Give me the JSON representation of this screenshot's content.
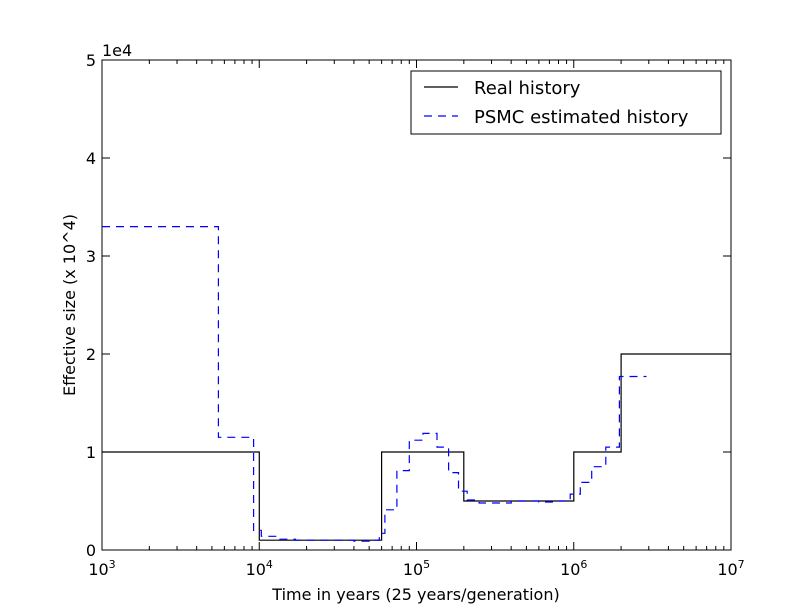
{
  "chart_data": {
    "type": "line",
    "title": "",
    "xlabel": "Time in years (25 years/generation)",
    "ylabel": "Effective size (x 10^4)",
    "x_scale": "log",
    "xlim": [
      1000,
      10000000
    ],
    "ylim": [
      0,
      50000
    ],
    "y_offset_label": "1e4",
    "x_ticks": [
      {
        "base": "10",
        "exp": "3",
        "value": 1000
      },
      {
        "base": "10",
        "exp": "4",
        "value": 10000
      },
      {
        "base": "10",
        "exp": "5",
        "value": 100000
      },
      {
        "base": "10",
        "exp": "6",
        "value": 1000000
      },
      {
        "base": "10",
        "exp": "7",
        "value": 10000000
      }
    ],
    "y_ticks": [
      {
        "label": "0",
        "value": 0
      },
      {
        "label": "1",
        "value": 10000
      },
      {
        "label": "2",
        "value": 20000
      },
      {
        "label": "3",
        "value": 30000
      },
      {
        "label": "4",
        "value": 40000
      },
      {
        "label": "5",
        "value": 50000
      }
    ],
    "grid": false,
    "legend_position": "top-right",
    "series": [
      {
        "name": "Real history",
        "color": "#000000",
        "dash": "solid",
        "step": true,
        "x": [
          1000,
          10000,
          60000,
          200000,
          1000000,
          2000000,
          10000000
        ],
        "y": [
          10000,
          1000,
          10000,
          5000,
          10000,
          20000,
          20000
        ]
      },
      {
        "name": "PSMC estimated history",
        "color": "#0000ff",
        "dash": "dashed",
        "step": true,
        "x": [
          1000,
          5500,
          9200,
          10300,
          13000,
          17000,
          25000,
          40000,
          50000,
          58000,
          63000,
          75000,
          90000,
          110000,
          135000,
          160000,
          185000,
          210000,
          250000,
          300000,
          400000,
          600000,
          800000,
          950000,
          1100000,
          1300000,
          1600000,
          1950000,
          2900000
        ],
        "y": [
          33000,
          11500,
          2000,
          1400,
          1100,
          1000,
          1000,
          900,
          1000,
          1700,
          4100,
          8100,
          11200,
          11900,
          10500,
          7900,
          6000,
          5100,
          4800,
          4800,
          5000,
          4900,
          5000,
          5700,
          6900,
          8500,
          10500,
          17700,
          17700
        ]
      }
    ]
  }
}
